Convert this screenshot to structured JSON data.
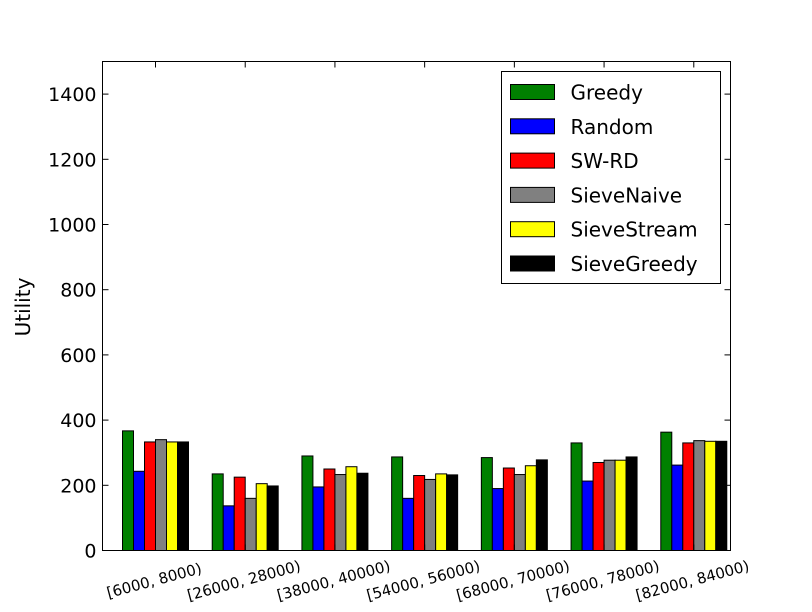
{
  "chart_data": {
    "type": "bar",
    "title": "",
    "xlabel": "",
    "ylabel": "Utility",
    "ylim": [
      0,
      1500
    ],
    "yticks": [
      0,
      200,
      400,
      600,
      800,
      1000,
      1200,
      1400
    ],
    "ytick_labels": [
      "0",
      "200",
      "400",
      "600",
      "800",
      "1000",
      "1200",
      "1400"
    ],
    "grid": false,
    "legend_position": "top-right",
    "categories": [
      "[6000, 8000)",
      "[26000, 28000)",
      "[38000, 40000)",
      "[54000, 56000)",
      "[68000, 70000)",
      "[76000, 78000)",
      "[82000, 84000)"
    ],
    "series": [
      {
        "name": "Greedy",
        "color": "#008000",
        "values": [
          367,
          235,
          290,
          287,
          285,
          330,
          363
        ]
      },
      {
        "name": "Random",
        "color": "#0000ff",
        "values": [
          243,
          137,
          195,
          160,
          190,
          213,
          262
        ]
      },
      {
        "name": "SW-RD",
        "color": "#ff0000",
        "values": [
          333,
          225,
          250,
          230,
          253,
          270,
          330
        ]
      },
      {
        "name": "SieveNaive",
        "color": "#808080",
        "values": [
          340,
          160,
          233,
          218,
          233,
          277,
          337
        ]
      },
      {
        "name": "SieveStream",
        "color": "#ffff00",
        "values": [
          333,
          205,
          257,
          235,
          260,
          277,
          335
        ]
      },
      {
        "name": "SieveGreedy",
        "color": "#000000",
        "values": [
          333,
          198,
          237,
          232,
          278,
          287,
          335
        ]
      }
    ]
  }
}
